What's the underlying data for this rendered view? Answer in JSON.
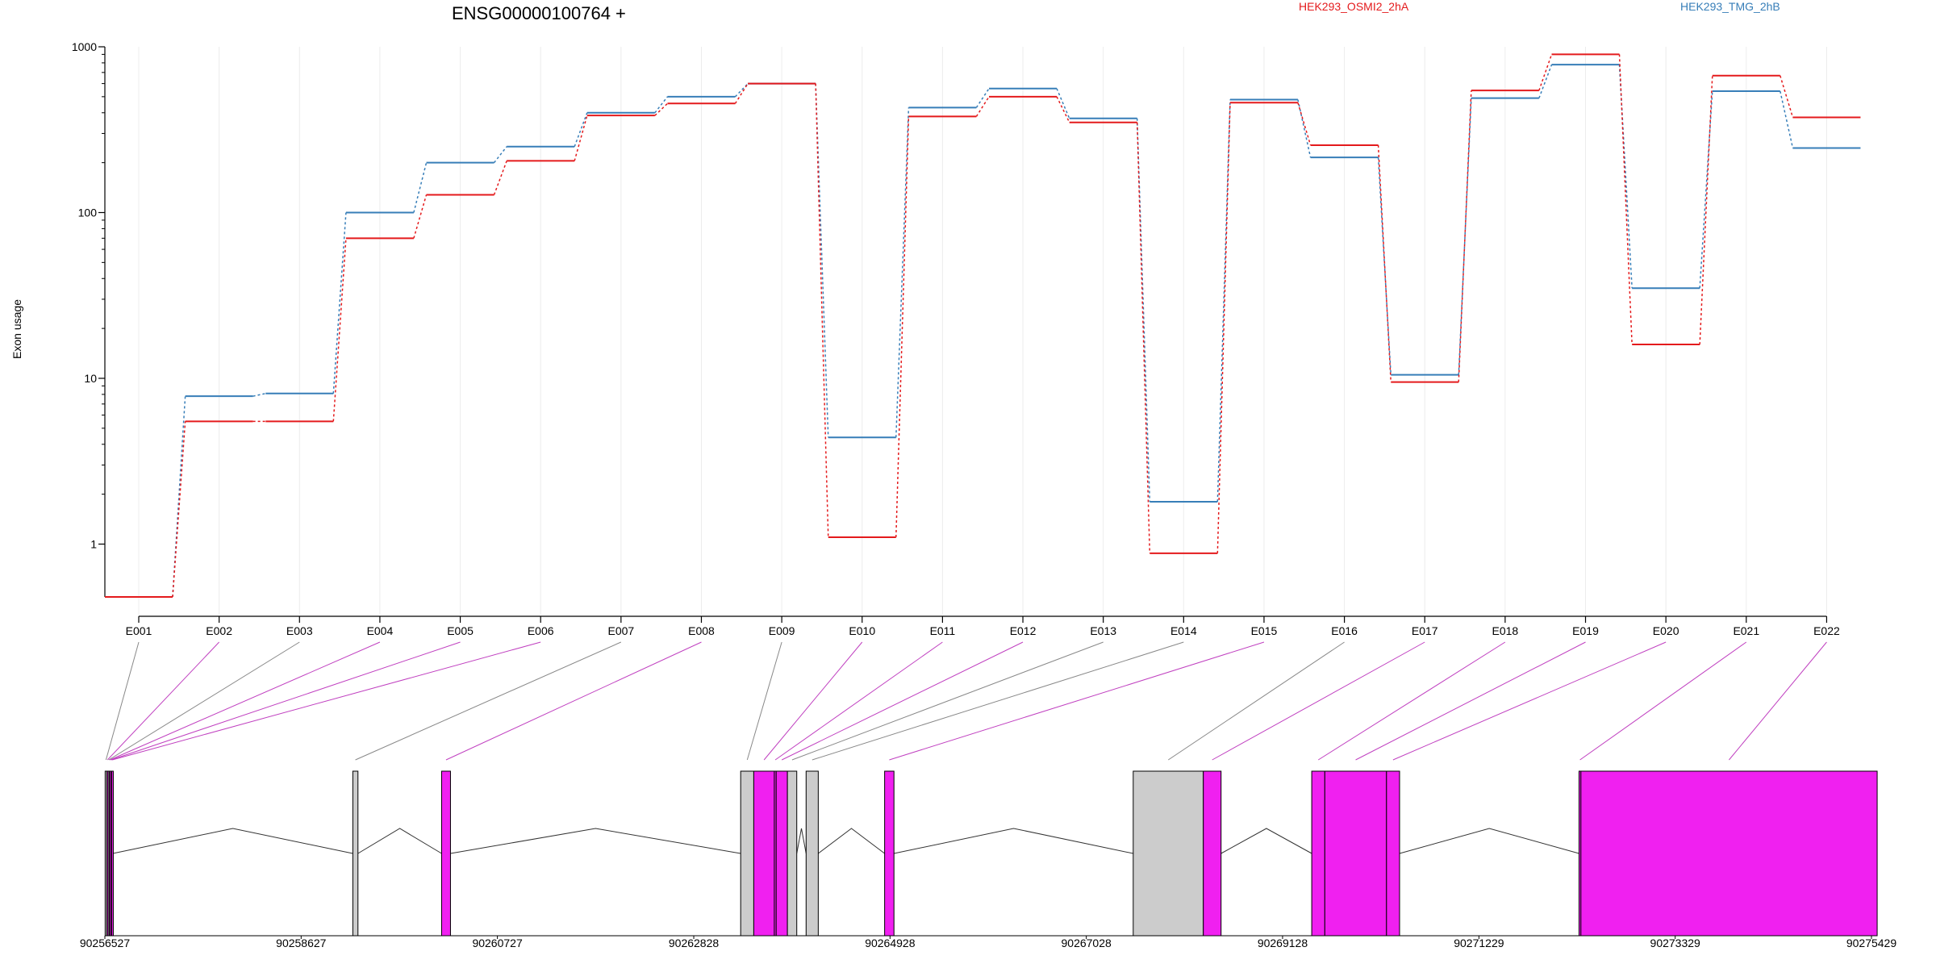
{
  "gene_title": "ENSG00000100764 +",
  "legend": [
    {
      "label": "HEK293_OSMI2_2hA",
      "color": "#e41a1c"
    },
    {
      "label": "HEK293_TMG_2hB",
      "color": "#377eb8"
    }
  ],
  "ylabel": "Exon usage",
  "chart_data": {
    "type": "line",
    "title": "ENSG00000100764 +",
    "xlabel": "",
    "ylabel": "Exon usage",
    "y_scale": "log",
    "ylim": [
      0.48,
      1000
    ],
    "y_ticks": [
      1,
      10,
      100,
      1000
    ],
    "grid": true,
    "legend_position": "top-right",
    "categories": [
      "E001",
      "E002",
      "E003",
      "E004",
      "E005",
      "E006",
      "E007",
      "E008",
      "E009",
      "E010",
      "E011",
      "E012",
      "E013",
      "E014",
      "E015",
      "E016",
      "E017",
      "E018",
      "E019",
      "E020",
      "E021",
      "E022"
    ],
    "series": [
      {
        "name": "HEK293_OSMI2_2hA",
        "color": "#e41a1c",
        "values": [
          0.48,
          5.5,
          5.5,
          70,
          128,
          205,
          385,
          455,
          600,
          1.1,
          380,
          500,
          350,
          0.88,
          460,
          255,
          9.5,
          545,
          900,
          16,
          670,
          375
        ]
      },
      {
        "name": "HEK293_TMG_2hB",
        "color": "#377eb8",
        "values": [
          0.48,
          7.8,
          8.1,
          100,
          200,
          250,
          400,
          500,
          600,
          4.4,
          430,
          560,
          370,
          1.8,
          480,
          215,
          10.5,
          490,
          780,
          35,
          540,
          245
        ]
      }
    ]
  },
  "gene_model": {
    "coordinate_ticks": [
      "90256527",
      "90258627",
      "90260727",
      "90262828",
      "90264928",
      "90267028",
      "90269128",
      "90271229",
      "90273329",
      "90275429"
    ],
    "exons": [
      {
        "id": "E001",
        "start": 90256530,
        "end": 90256548,
        "significant": false
      },
      {
        "id": "E002",
        "start": 90256548,
        "end": 90256562,
        "significant": true
      },
      {
        "id": "E003",
        "start": 90256562,
        "end": 90256575,
        "significant": false
      },
      {
        "id": "E004",
        "start": 90256575,
        "end": 90256588,
        "significant": true
      },
      {
        "id": "E005",
        "start": 90256588,
        "end": 90256600,
        "significant": true
      },
      {
        "id": "E006",
        "start": 90256600,
        "end": 90256612,
        "significant": true
      },
      {
        "id": "E007",
        "start": 90259180,
        "end": 90259235,
        "significant": false
      },
      {
        "id": "E008",
        "start": 90260130,
        "end": 90260225,
        "significant": true
      },
      {
        "id": "E009",
        "start": 90263330,
        "end": 90263470,
        "significant": false
      },
      {
        "id": "E010",
        "start": 90263470,
        "end": 90263690,
        "significant": true
      },
      {
        "id": "E011",
        "start": 90263690,
        "end": 90263710,
        "significant": true
      },
      {
        "id": "E012",
        "start": 90263710,
        "end": 90263830,
        "significant": true
      },
      {
        "id": "E013",
        "start": 90263830,
        "end": 90263930,
        "significant": false
      },
      {
        "id": "E014",
        "start": 90264030,
        "end": 90264160,
        "significant": false
      },
      {
        "id": "E015",
        "start": 90264870,
        "end": 90264970,
        "significant": true
      },
      {
        "id": "E016",
        "start": 90267530,
        "end": 90268280,
        "significant": false
      },
      {
        "id": "E017",
        "start": 90268280,
        "end": 90268470,
        "significant": true
      },
      {
        "id": "E018",
        "start": 90269440,
        "end": 90269580,
        "significant": true
      },
      {
        "id": "E019",
        "start": 90269580,
        "end": 90270240,
        "significant": true
      },
      {
        "id": "E020",
        "start": 90270240,
        "end": 90270380,
        "significant": true
      },
      {
        "id": "E021",
        "start": 90272300,
        "end": 90272320,
        "significant": true
      },
      {
        "id": "E022",
        "start": 90272320,
        "end": 90275490,
        "significant": true
      }
    ]
  }
}
